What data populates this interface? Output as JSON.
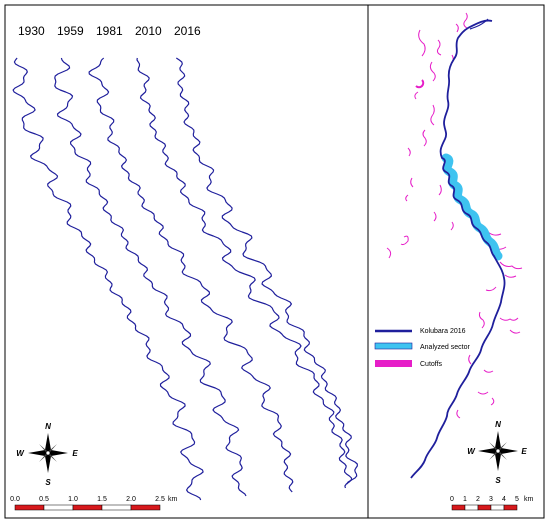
{
  "left_panel": {
    "years": [
      "1930",
      "1959",
      "1981",
      "2010",
      "2016"
    ],
    "compass": {
      "n": "N",
      "s": "S",
      "e": "E",
      "w": "W"
    },
    "scale": {
      "ticks": [
        "0.0",
        "0.5",
        "1.0",
        "1.5",
        "2.0",
        "2.5"
      ],
      "unit": "km"
    }
  },
  "right_panel": {
    "legend": [
      {
        "label": "Kolubara 2016",
        "color": "#1f1f9c"
      },
      {
        "label": "Analyzed sector",
        "color": "#3ec3f0"
      },
      {
        "label": "Cutoffs",
        "color": "#e61ec8"
      }
    ],
    "compass": {
      "n": "N",
      "s": "S",
      "e": "E",
      "w": "W"
    },
    "scale": {
      "ticks": [
        "0",
        "1",
        "2",
        "3",
        "4",
        "5"
      ],
      "unit": "km"
    }
  },
  "colors": {
    "river": "#1f1f9c",
    "sector": "#3ec3f0",
    "cutoff": "#e61ec8",
    "scale_red": "#d7191c",
    "frame": "#000000"
  }
}
